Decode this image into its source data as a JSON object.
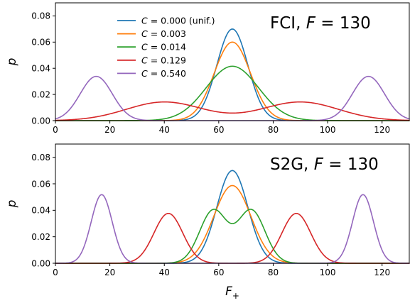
{
  "chart_data": [
    {
      "type": "line",
      "title": "FCI, F = 130",
      "title_parts": {
        "prefix": "FCI, ",
        "var": "F",
        "suffix": " = 130"
      },
      "ylabel": "p",
      "xlabel": "",
      "xlim": [
        0,
        130
      ],
      "ylim": [
        0,
        0.09
      ],
      "xticks": [
        0,
        20,
        40,
        60,
        80,
        100,
        120
      ],
      "yticks": [
        0.0,
        0.02,
        0.04,
        0.06,
        0.08
      ],
      "ytick_labels": [
        "0.00",
        "0.02",
        "0.04",
        "0.06",
        "0.08"
      ],
      "grid": false,
      "legend": "top-center",
      "series": [
        {
          "name": "C = 0.000 (unif.)",
          "name_parts": {
            "var": "C",
            "rest": " = 0.000 (unif.)"
          },
          "color": "#1f77b4",
          "components": [
            {
              "weight": 1,
              "mu": 65,
              "sigma": 5.7
            }
          ]
        },
        {
          "name": "C = 0.003",
          "name_parts": {
            "var": "C",
            "rest": " = 0.003"
          },
          "color": "#ff7f0e",
          "components": [
            {
              "weight": 1,
              "mu": 65,
              "sigma": 6.65
            }
          ]
        },
        {
          "name": "C = 0.014",
          "name_parts": {
            "var": "C",
            "rest": " = 0.014"
          },
          "color": "#2ca02c",
          "components": [
            {
              "weight": 1,
              "mu": 65,
              "sigma": 9.6
            }
          ]
        },
        {
          "name": "C = 0.129",
          "name_parts": {
            "var": "C",
            "rest": " = 0.129"
          },
          "color": "#d62728",
          "components": [
            {
              "weight": 0.5,
              "mu": 40,
              "sigma": 14
            },
            {
              "weight": 0.5,
              "mu": 90,
              "sigma": 14
            }
          ]
        },
        {
          "name": "C = 0.540",
          "name_parts": {
            "var": "C",
            "rest": " = 0.540"
          },
          "color": "#9467bd",
          "components": [
            {
              "weight": 0.5,
              "mu": 15,
              "sigma": 5.9
            },
            {
              "weight": 0.5,
              "mu": 115,
              "sigma": 5.9
            }
          ]
        }
      ]
    },
    {
      "type": "line",
      "title": "S2G, F = 130",
      "title_parts": {
        "prefix": "S2G, ",
        "var": "F",
        "suffix": " = 130"
      },
      "ylabel": "p",
      "xlabel": "F+",
      "xlabel_parts": {
        "var": "F",
        "sub": "+"
      },
      "xlim": [
        0,
        130
      ],
      "ylim": [
        0,
        0.09
      ],
      "xticks": [
        0,
        20,
        40,
        60,
        80,
        100,
        120
      ],
      "yticks": [
        0.0,
        0.02,
        0.04,
        0.06,
        0.08
      ],
      "ytick_labels": [
        "0.00",
        "0.02",
        "0.04",
        "0.06",
        "0.08"
      ],
      "grid": false,
      "series": [
        {
          "name": "C = 0.000 (unif.)",
          "color": "#1f77b4",
          "components": [
            {
              "weight": 1,
              "mu": 65,
              "sigma": 5.7
            }
          ]
        },
        {
          "name": "C = 0.003",
          "color": "#ff7f0e",
          "components": [
            {
              "weight": 1,
              "mu": 65,
              "sigma": 6.8
            }
          ]
        },
        {
          "name": "C = 0.014",
          "color": "#2ca02c",
          "components": [
            {
              "weight": 0.5,
              "mu": 58,
              "sigma": 5.0
            },
            {
              "weight": 0.5,
              "mu": 72,
              "sigma": 5.0
            }
          ]
        },
        {
          "name": "C = 0.129",
          "color": "#d62728",
          "components": [
            {
              "weight": 0.5,
              "mu": 41.5,
              "sigma": 5.3
            },
            {
              "weight": 0.5,
              "mu": 88.5,
              "sigma": 5.3
            }
          ]
        },
        {
          "name": "C = 0.540",
          "color": "#9467bd",
          "components": [
            {
              "weight": 0.5,
              "mu": 17,
              "sigma": 3.85
            },
            {
              "weight": 0.5,
              "mu": 113,
              "sigma": 3.85
            }
          ]
        }
      ]
    }
  ]
}
